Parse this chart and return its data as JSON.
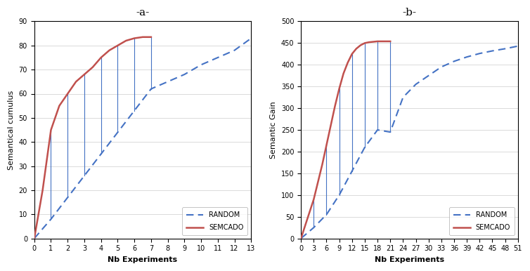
{
  "panel_a": {
    "title": "-a-",
    "xlabel": "Nb Experiments",
    "ylabel": "Semantical cumulus",
    "xlim": [
      0,
      13
    ],
    "ylim": [
      0,
      90
    ],
    "xticks": [
      0,
      1,
      2,
      3,
      4,
      5,
      6,
      7,
      8,
      9,
      10,
      11,
      12,
      13
    ],
    "yticks": [
      0,
      10,
      20,
      30,
      40,
      50,
      60,
      70,
      80,
      90
    ],
    "semcado_x": [
      0,
      0.5,
      1,
      1.5,
      2,
      2.5,
      3,
      3.5,
      4,
      4.5,
      5,
      5.5,
      6,
      6.5,
      7
    ],
    "semcado_y": [
      0,
      20,
      45,
      55,
      60,
      65,
      68,
      71,
      75,
      78,
      80,
      82,
      83,
      83.5,
      83.5
    ],
    "random_x": [
      0,
      1,
      2,
      3,
      4,
      5,
      6,
      7,
      8,
      9,
      10,
      11,
      12,
      13
    ],
    "random_y": [
      0,
      8,
      17,
      26,
      35,
      44,
      53,
      62,
      65,
      68,
      72,
      75,
      78,
      83
    ],
    "vlines_semcado_x": [
      1,
      2,
      3,
      4,
      5,
      6,
      7
    ],
    "vlines_semcado_y": [
      45,
      60,
      68,
      75,
      80,
      83,
      83.5
    ],
    "vlines_random_y": [
      8,
      17,
      26,
      35,
      44,
      53,
      62
    ],
    "legend_random": "RANDOM",
    "legend_semcado": "SEMCADO",
    "random_color": "#4472C4",
    "semcado_color": "#C0504D",
    "vline_color": "#4472C4"
  },
  "panel_b": {
    "title": "-b-",
    "xlabel": "Nb Experiments",
    "ylabel": "Semantic Gain",
    "xlim": [
      0,
      51
    ],
    "ylim": [
      0,
      500
    ],
    "xticks": [
      0,
      3,
      6,
      9,
      12,
      15,
      18,
      21,
      24,
      27,
      30,
      33,
      36,
      39,
      42,
      45,
      48,
      51
    ],
    "yticks": [
      0,
      50,
      100,
      150,
      200,
      250,
      300,
      350,
      400,
      450,
      500
    ],
    "semcado_x": [
      0,
      1,
      2,
      3,
      4,
      5,
      6,
      7,
      8,
      9,
      10,
      11,
      12,
      13,
      14,
      15,
      16,
      17,
      18,
      19,
      20,
      21
    ],
    "semcado_y": [
      0,
      30,
      60,
      90,
      130,
      170,
      215,
      260,
      305,
      345,
      380,
      405,
      425,
      437,
      445,
      450,
      452,
      453,
      454,
      454,
      454,
      454
    ],
    "random_x": [
      0,
      3,
      6,
      9,
      12,
      15,
      18,
      21,
      24,
      27,
      30,
      33,
      36,
      39,
      42,
      45,
      48,
      51
    ],
    "random_y": [
      0,
      25,
      55,
      100,
      155,
      210,
      250,
      245,
      325,
      355,
      375,
      395,
      408,
      418,
      426,
      432,
      437,
      443
    ],
    "vlines_semcado_x": [
      3,
      6,
      9,
      12,
      15,
      18,
      21
    ],
    "vlines_semcado_y": [
      90,
      215,
      345,
      425,
      450,
      454,
      454
    ],
    "vlines_random_y": [
      25,
      55,
      100,
      155,
      210,
      250,
      245
    ],
    "legend_random": "RANDOM",
    "legend_semcado": "SEMCADO",
    "random_color": "#4472C4",
    "semcado_color": "#C0504D",
    "vline_color": "#4472C4"
  },
  "figsize": [
    7.54,
    3.86
  ],
  "dpi": 100
}
